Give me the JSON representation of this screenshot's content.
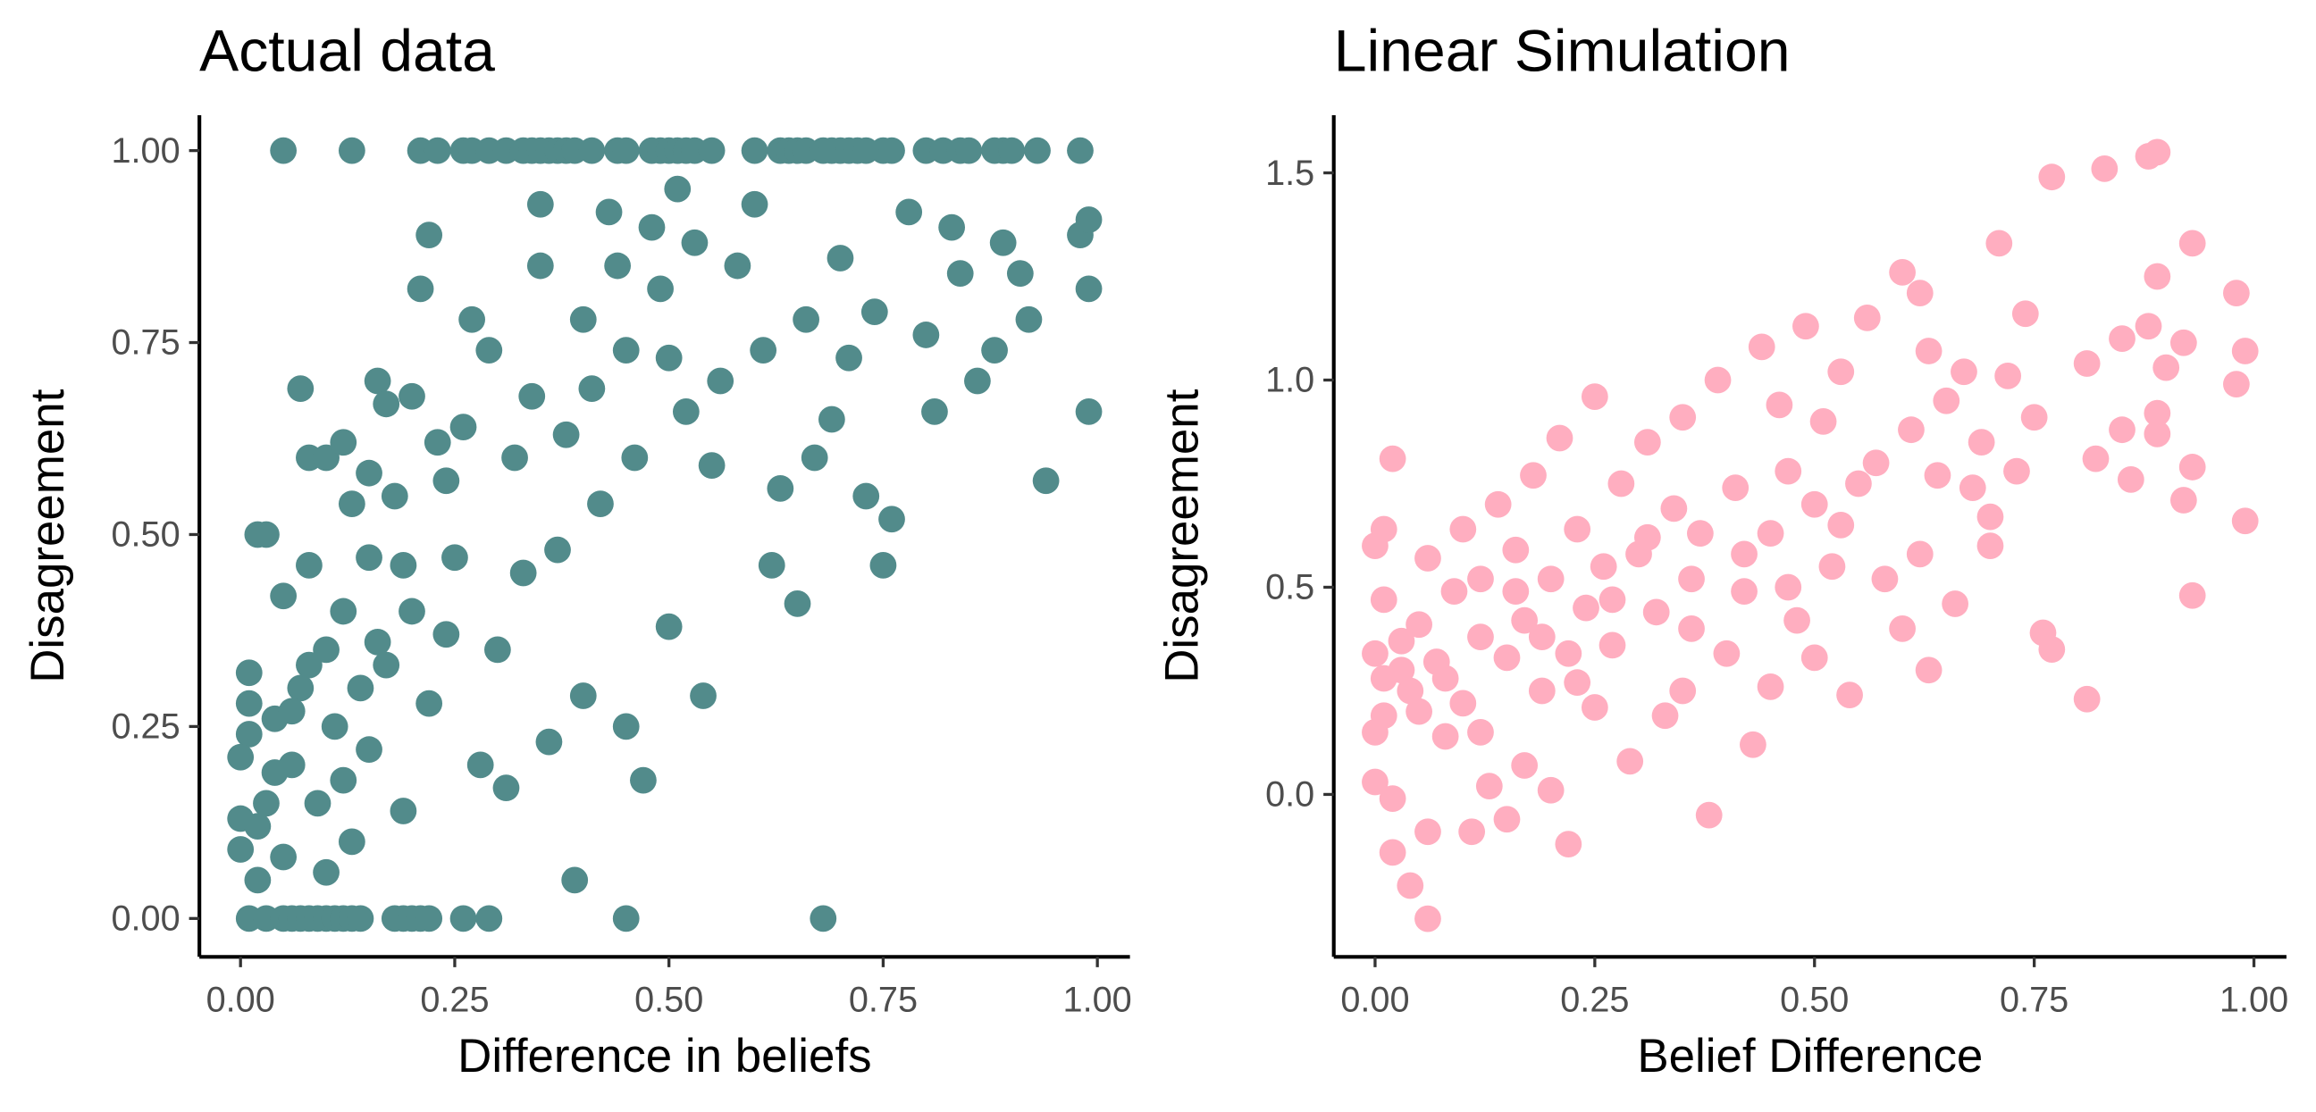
{
  "chart_data": [
    {
      "type": "scatter",
      "title": "Actual data",
      "x_label": "Difference in beliefs",
      "y_label": "Disagreement",
      "color": "#528b8b",
      "xlim": [
        -0.048,
        1.038
      ],
      "ylim": [
        -0.05,
        1.046
      ],
      "xticks": [
        {
          "value": 0,
          "label": "0.00"
        },
        {
          "value": 0.25,
          "label": "0.25"
        },
        {
          "value": 0.5,
          "label": "0.50"
        },
        {
          "value": 0.75,
          "label": "0.75"
        },
        {
          "value": 1,
          "label": "1.00"
        }
      ],
      "yticks": [
        {
          "value": 0,
          "label": "0.00"
        },
        {
          "value": 0.25,
          "label": "0.25"
        },
        {
          "value": 0.5,
          "label": "0.50"
        },
        {
          "value": 0.75,
          "label": "0.75"
        },
        {
          "value": 1,
          "label": "1.00"
        }
      ],
      "x": [
        0.05,
        0.13,
        0.21,
        0.23,
        0.26,
        0.27,
        0.29,
        0.31,
        0.33,
        0.34,
        0.35,
        0.36,
        0.37,
        0.38,
        0.39,
        0.41,
        0.44,
        0.45,
        0.48,
        0.49,
        0.5,
        0.51,
        0.52,
        0.53,
        0.55,
        0.6,
        0.63,
        0.64,
        0.65,
        0.66,
        0.68,
        0.69,
        0.7,
        0.71,
        0.72,
        0.73,
        0.75,
        0.76,
        0.8,
        0.82,
        0.84,
        0.85,
        0.88,
        0.89,
        0.9,
        0.93,
        0.98,
        0.01,
        0.03,
        0.05,
        0.06,
        0.07,
        0.08,
        0.09,
        0.1,
        0.11,
        0.12,
        0.13,
        0.14,
        0.18,
        0.19,
        0.2,
        0.21,
        0.22,
        0.26,
        0.29,
        0.45,
        0.68,
        0.01,
        0.01,
        0.01,
        0,
        0.02,
        0.03,
        0,
        0,
        0.02,
        0.03,
        0.04,
        0.05,
        0.06,
        0.07,
        0.07,
        0.08,
        0.08,
        0.1,
        0.1,
        0.12,
        0.12,
        0.13,
        0.14,
        0.15,
        0.15,
        0.16,
        0.16,
        0.17,
        0.18,
        0.19,
        0.2,
        0.2,
        0.21,
        0.22,
        0.23,
        0.24,
        0.25,
        0.26,
        0.27,
        0.28,
        0.29,
        0.3,
        0.31,
        0.32,
        0.33,
        0.34,
        0.35,
        0.35,
        0.36,
        0.37,
        0.38,
        0.39,
        0.4,
        0.4,
        0.41,
        0.42,
        0.43,
        0.44,
        0.45,
        0.45,
        0.46,
        0.47,
        0.48,
        0.49,
        0.5,
        0.5,
        0.51,
        0.52,
        0.53,
        0.54,
        0.55,
        0.56,
        0.58,
        0.6,
        0.61,
        0.62,
        0.63,
        0.65,
        0.66,
        0.67,
        0.69,
        0.7,
        0.71,
        0.73,
        0.74,
        0.75,
        0.76,
        0.78,
        0.8,
        0.81,
        0.83,
        0.84,
        0.86,
        0.88,
        0.89,
        0.91,
        0.92,
        0.94,
        0.98,
        0.99,
        0.99,
        0.99,
        0.02,
        0.05,
        0.09,
        0.11,
        0.13,
        0.15,
        0.17,
        0.19,
        0.22,
        0.24,
        0.04,
        0.06,
        0.08,
        0.1,
        0.12
      ],
      "values": [
        1,
        1,
        1,
        1,
        1,
        1,
        1,
        1,
        1,
        1,
        1,
        1,
        1,
        1,
        1,
        1,
        1,
        1,
        1,
        1,
        1,
        1,
        1,
        1,
        1,
        1,
        1,
        1,
        1,
        1,
        1,
        1,
        1,
        1,
        1,
        1,
        1,
        1,
        1,
        1,
        1,
        1,
        1,
        1,
        1,
        1,
        1,
        0,
        0,
        0,
        0,
        0,
        0,
        0,
        0,
        0,
        0,
        0,
        0,
        0,
        0,
        0,
        0,
        0,
        0,
        0,
        0,
        0,
        0.32,
        0.28,
        0.24,
        0.21,
        0.5,
        0.5,
        0.13,
        0.09,
        0.05,
        0.15,
        0.26,
        0.42,
        0.2,
        0.3,
        0.69,
        0.46,
        0.6,
        0.35,
        0.6,
        0.4,
        0.62,
        0.54,
        0.3,
        0.58,
        0.47,
        0.7,
        0.36,
        0.67,
        0.55,
        0.46,
        0.68,
        0.4,
        0.82,
        0.89,
        0.62,
        0.57,
        0.47,
        0.64,
        0.78,
        0.2,
        0.74,
        0.35,
        0.17,
        0.6,
        0.45,
        0.68,
        0.93,
        0.85,
        0.23,
        0.48,
        0.63,
        0.05,
        0.78,
        0.29,
        0.69,
        0.54,
        0.92,
        0.85,
        0.74,
        0.25,
        0.6,
        0.18,
        0.9,
        0.82,
        0.38,
        0.73,
        0.95,
        0.66,
        0.88,
        0.29,
        0.59,
        0.7,
        0.85,
        0.93,
        0.74,
        0.46,
        0.56,
        0.41,
        0.78,
        0.6,
        0.65,
        0.86,
        0.73,
        0.55,
        0.79,
        0.46,
        0.52,
        0.92,
        0.76,
        0.66,
        0.9,
        0.84,
        0.7,
        0.74,
        0.88,
        0.84,
        0.78,
        0.57,
        0.89,
        0.91,
        0.82,
        0.66,
        0.12,
        0.08,
        0.15,
        0.25,
        0.1,
        0.22,
        0.33,
        0.14,
        0.28,
        0.37,
        0.19,
        0.27,
        0.33,
        0.06,
        0.18
      ]
    },
    {
      "type": "scatter",
      "title": "Linear Simulation",
      "x_label": "Belief Difference",
      "y_label": "Disagreement",
      "color": "#ffaec0",
      "xlim": [
        -0.047,
        1.037
      ],
      "ylim": [
        -0.392,
        1.639
      ],
      "xticks": [
        {
          "value": 0,
          "label": "0.00"
        },
        {
          "value": 0.25,
          "label": "0.25"
        },
        {
          "value": 0.5,
          "label": "0.50"
        },
        {
          "value": 0.75,
          "label": "0.75"
        },
        {
          "value": 1,
          "label": "1.00"
        }
      ],
      "yticks": [
        {
          "value": 0,
          "label": "0.0"
        },
        0.5,
        {
          "value": 1,
          "label": "1.0"
        },
        1.5
      ],
      "x": [
        0,
        0,
        0,
        0,
        0.01,
        0.01,
        0.01,
        0.01,
        0.02,
        0.02,
        0.02,
        0.03,
        0.04,
        0.04,
        0.05,
        0.06,
        0.06,
        0.06,
        0.07,
        0.08,
        0.09,
        0.1,
        0.1,
        0.11,
        0.12,
        0.12,
        0.13,
        0.14,
        0.15,
        0.15,
        0.16,
        0.17,
        0.17,
        0.18,
        0.19,
        0.2,
        0.2,
        0.21,
        0.22,
        0.22,
        0.23,
        0.24,
        0.25,
        0.25,
        0.26,
        0.27,
        0.28,
        0.29,
        0.3,
        0.31,
        0.32,
        0.33,
        0.34,
        0.35,
        0.35,
        0.36,
        0.37,
        0.38,
        0.39,
        0.4,
        0.41,
        0.42,
        0.43,
        0.44,
        0.45,
        0.45,
        0.46,
        0.47,
        0.48,
        0.49,
        0.5,
        0.5,
        0.51,
        0.52,
        0.53,
        0.54,
        0.55,
        0.56,
        0.58,
        0.6,
        0.6,
        0.61,
        0.62,
        0.62,
        0.63,
        0.64,
        0.65,
        0.66,
        0.67,
        0.68,
        0.69,
        0.7,
        0.71,
        0.72,
        0.73,
        0.74,
        0.75,
        0.76,
        0.77,
        0.77,
        0.81,
        0.81,
        0.82,
        0.83,
        0.85,
        0.85,
        0.86,
        0.88,
        0.88,
        0.89,
        0.89,
        0.89,
        0.9,
        0.92,
        0.93,
        0.93,
        0.93,
        0.98,
        0.98,
        0.99,
        0.99,
        0.92,
        0.89,
        0.03,
        0.05,
        0.08,
        0.12,
        0.16,
        0.19,
        0.23,
        0.27,
        0.31,
        0.36,
        0.42,
        0.47,
        0.53,
        0.57,
        0.63,
        0.7
      ],
      "values": [
        0.6,
        0.34,
        0.15,
        0.03,
        0.64,
        0.47,
        0.28,
        0.19,
        0.81,
        -0.01,
        -0.14,
        0.37,
        -0.22,
        0.25,
        0.41,
        -0.3,
        0.57,
        -0.09,
        0.32,
        0.14,
        0.49,
        0.64,
        0.22,
        -0.09,
        0.52,
        0.38,
        0.02,
        0.7,
        0.33,
        -0.06,
        0.59,
        0.42,
        0.07,
        0.77,
        0.25,
        0.52,
        0.01,
        0.86,
        0.34,
        -0.12,
        0.64,
        0.45,
        0.96,
        0.21,
        0.55,
        0.36,
        0.75,
        0.08,
        0.58,
        0.85,
        0.44,
        0.19,
        0.69,
        0.91,
        0.25,
        0.52,
        0.63,
        -0.05,
        1.0,
        0.34,
        0.74,
        0.49,
        0.12,
        1.08,
        0.63,
        0.26,
        0.94,
        0.78,
        0.42,
        1.13,
        0.7,
        0.33,
        0.9,
        0.55,
        1.02,
        0.24,
        0.75,
        1.15,
        0.52,
        1.26,
        0.4,
        0.88,
        1.21,
        0.58,
        1.07,
        0.77,
        0.95,
        0.46,
        1.02,
        0.74,
        0.85,
        0.6,
        1.33,
        1.01,
        0.78,
        1.16,
        0.91,
        0.39,
        1.49,
        0.35,
        1.04,
        0.23,
        0.81,
        1.51,
        1.1,
        0.88,
        0.76,
        1.54,
        1.13,
        1.55,
        1.25,
        0.92,
        1.03,
        1.09,
        1.33,
        0.79,
        0.48,
        1.21,
        0.99,
        1.07,
        0.66,
        0.71,
        0.87,
        0.3,
        0.2,
        0.28,
        0.15,
        0.49,
        0.38,
        0.27,
        0.47,
        0.62,
        0.4,
        0.58,
        0.5,
        0.65,
        0.8,
        0.3,
        0.67
      ]
    }
  ]
}
